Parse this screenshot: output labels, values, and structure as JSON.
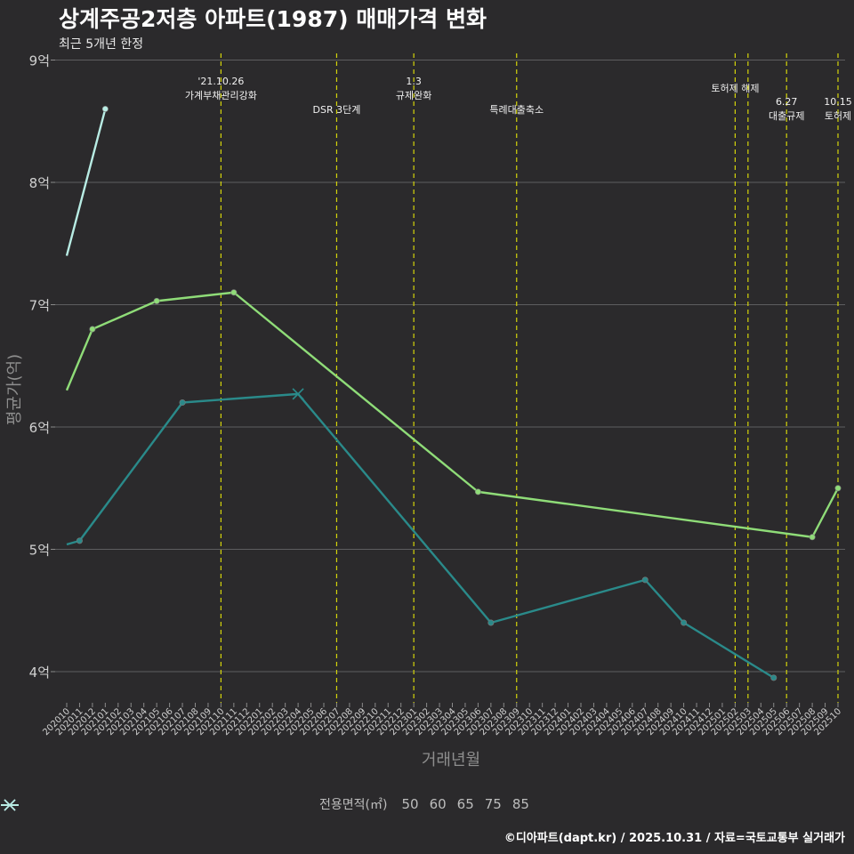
{
  "header": {
    "title": "상계주공2저층 아파트(1987) 매매가격 변화",
    "subtitle": "최근 5개년 한정"
  },
  "footer": {
    "credit": "©디아파트(dapt.kr) / 2025.10.31 / 자료=국토교통부 실거래가"
  },
  "colors": {
    "background": "#2b2a2c",
    "grid": "#5d5d5f",
    "event_line": "#d4d40a",
    "series": {
      "50": "#2a8a8a",
      "60": "#8fdc78",
      "65": "#e0545a",
      "75": "#6f86b8",
      "85": "#b8ece4"
    }
  },
  "chart_data": {
    "type": "line",
    "title": "상계주공2저층 아파트(1987) 매매가격 변화",
    "xlabel": "거래년월",
    "ylabel": "평균가(억)",
    "ylim": [
      3.75,
      9.1
    ],
    "yticks": [
      4,
      5,
      6,
      7,
      8,
      9
    ],
    "ytick_labels": [
      "4억",
      "5억",
      "6억",
      "7억",
      "8억",
      "9억"
    ],
    "grid": true,
    "categories": [
      "202010",
      "202011",
      "202012",
      "202101",
      "202102",
      "202103",
      "202104",
      "202105",
      "202106",
      "202107",
      "202108",
      "202109",
      "202110",
      "202111",
      "202112",
      "202201",
      "202202",
      "202203",
      "202204",
      "202205",
      "202206",
      "202207",
      "202208",
      "202209",
      "202210",
      "202211",
      "202212",
      "202301",
      "202302",
      "202303",
      "202304",
      "202305",
      "202306",
      "202307",
      "202308",
      "202309",
      "202310",
      "202311",
      "202312",
      "202401",
      "202402",
      "202403",
      "202404",
      "202405",
      "202406",
      "202407",
      "202408",
      "202409",
      "202410",
      "202411",
      "202412",
      "202501",
      "202502",
      "202503",
      "202504",
      "202505",
      "202506",
      "202507",
      "202508",
      "202509",
      "202510"
    ],
    "legend": {
      "title": "전용면적(㎡)",
      "placement": "bottom"
    },
    "series": [
      {
        "name": "50",
        "points": [
          {
            "x": "202010",
            "y": 5.04,
            "marker": "none"
          },
          {
            "x": "202011",
            "y": 5.07,
            "marker": "dot"
          },
          {
            "x": "202107",
            "y": 6.2,
            "marker": "dot"
          },
          {
            "x": "202204",
            "y": 6.27,
            "marker": "cross"
          },
          {
            "x": "202307",
            "y": 4.4,
            "marker": "dot"
          },
          {
            "x": "202407",
            "y": 4.75,
            "marker": "dot"
          },
          {
            "x": "202410",
            "y": 4.4,
            "marker": "dot"
          },
          {
            "x": "202505",
            "y": 3.95,
            "marker": "dot"
          }
        ]
      },
      {
        "name": "60",
        "points": [
          {
            "x": "202010",
            "y": 6.3,
            "marker": "none"
          },
          {
            "x": "202012",
            "y": 6.8,
            "marker": "dot"
          },
          {
            "x": "202105",
            "y": 7.03,
            "marker": "dot"
          },
          {
            "x": "202111",
            "y": 7.1,
            "marker": "dot"
          },
          {
            "x": "202306",
            "y": 5.47,
            "marker": "dot"
          },
          {
            "x": "202508",
            "y": 5.1,
            "marker": "dot"
          },
          {
            "x": "202510",
            "y": 5.5,
            "marker": "dot"
          }
        ]
      },
      {
        "name": "65",
        "points": []
      },
      {
        "name": "75",
        "points": []
      },
      {
        "name": "85",
        "points": [
          {
            "x": "202010",
            "y": 7.4,
            "marker": "none"
          },
          {
            "x": "202101",
            "y": 8.6,
            "marker": "dot"
          }
        ]
      }
    ],
    "events": [
      {
        "x": "202110",
        "label": [
          "'21.10.26",
          "가계부채관리강화"
        ],
        "level": "top"
      },
      {
        "x": "202207",
        "label": [
          "DSR 3단계"
        ],
        "level": "low"
      },
      {
        "x": "202301",
        "label": [
          "1.3",
          "규제완화"
        ],
        "level": "top"
      },
      {
        "x": "202309",
        "label": [
          "특례대출축소"
        ],
        "level": "low"
      },
      {
        "x": "202502",
        "label": [
          "토허제 해제"
        ],
        "level": "mid"
      },
      {
        "x": "202503",
        "label": [],
        "level": "none"
      },
      {
        "x": "202506",
        "label": [
          "6.27",
          "대출규제"
        ],
        "level": "lowpair"
      },
      {
        "x": "202510",
        "label": [
          "10.15",
          "토허제"
        ],
        "level": "lowpair"
      }
    ]
  }
}
